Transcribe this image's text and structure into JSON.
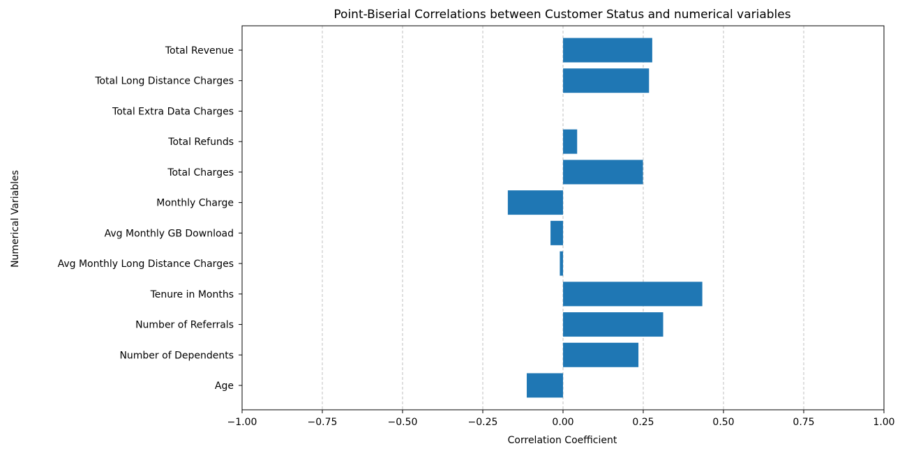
{
  "chart_data": {
    "type": "bar",
    "orientation": "horizontal",
    "title": "Point-Biserial Correlations between Customer Status and numerical variables",
    "xlabel": "Correlation Coefficient",
    "ylabel": "Numerical Variables",
    "xlim": [
      -1.0,
      1.0
    ],
    "xticks": [
      -1.0,
      -0.75,
      -0.5,
      -0.25,
      0.0,
      0.25,
      0.5,
      0.75,
      1.0
    ],
    "xtick_labels": [
      "−1.00",
      "−0.75",
      "−0.50",
      "−0.25",
      "0.00",
      "0.25",
      "0.50",
      "0.75",
      "1.00"
    ],
    "grid": "x-dashed",
    "bar_color": "#1f77b4",
    "categories": [
      "Age",
      "Number of Dependents",
      "Number of Referrals",
      "Tenure in Months",
      "Avg Monthly Long Distance Charges",
      "Avg Monthly GB Download",
      "Monthly Charge",
      "Total Charges",
      "Total Refunds",
      "Total Extra Data Charges",
      "Total Long Distance Charges",
      "Total Revenue"
    ],
    "values": [
      -0.113,
      0.235,
      0.312,
      0.434,
      -0.01,
      -0.039,
      -0.172,
      0.249,
      0.044,
      0.0,
      0.268,
      0.278
    ]
  }
}
